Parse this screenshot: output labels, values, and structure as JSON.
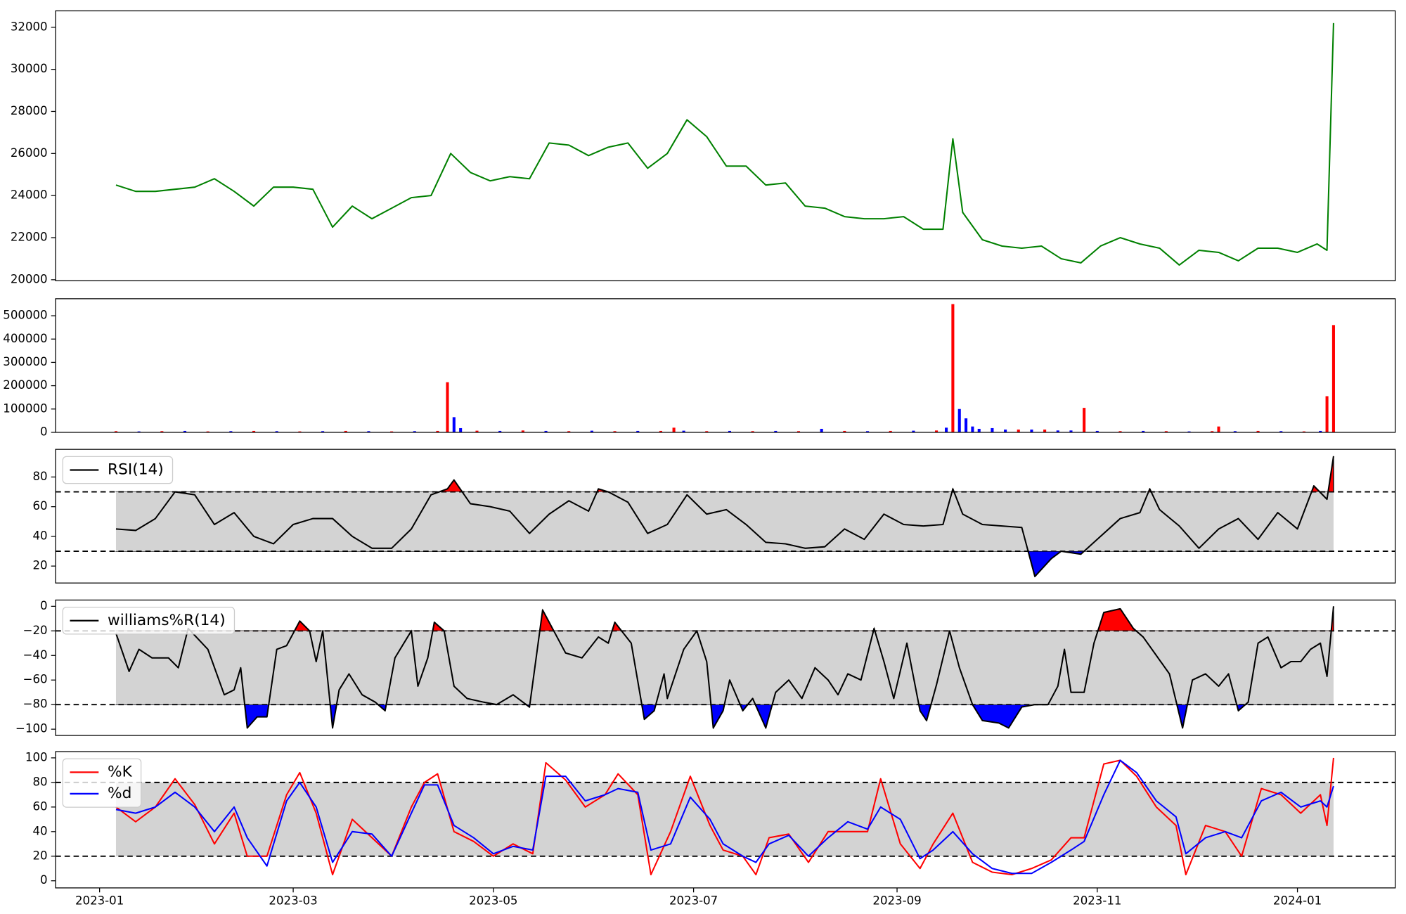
{
  "chart_data": [
    {
      "type": "line",
      "xlim": [
        -13.4,
        394.8
      ],
      "ylim": [
        19950,
        32780
      ],
      "yticks": [
        20000,
        22000,
        24000,
        26000,
        28000,
        30000,
        32000
      ],
      "x": [
        5,
        11,
        17,
        23,
        29,
        35,
        41,
        47,
        53,
        59,
        65,
        71,
        77,
        83,
        89,
        95,
        101,
        107,
        113,
        119,
        125,
        131,
        137,
        143,
        149,
        155,
        161,
        167,
        173,
        179,
        185,
        191,
        197,
        203,
        209,
        215,
        221,
        227,
        233,
        239,
        245,
        251,
        257,
        260,
        263,
        269,
        275,
        281,
        287,
        293,
        299,
        305,
        311,
        317,
        323,
        329,
        335,
        341,
        347,
        353,
        359,
        365,
        371,
        374,
        376
      ],
      "series": [
        {
          "color": "#008000",
          "values": [
            24500,
            24200,
            24200,
            24300,
            24400,
            24800,
            24200,
            23500,
            24400,
            24400,
            24300,
            22500,
            23500,
            22900,
            23400,
            23900,
            24000,
            26000,
            25100,
            24700,
            24900,
            24800,
            26500,
            26400,
            25900,
            26300,
            26500,
            25300,
            26000,
            27600,
            26800,
            25400,
            25400,
            24500,
            24600,
            23500,
            23400,
            23000,
            22900,
            22900,
            23000,
            22400,
            22400,
            26700,
            23200,
            21900,
            21600,
            21500,
            21600,
            21000,
            20800,
            21600,
            22000,
            21700,
            21500,
            20700,
            21400,
            21300,
            20900,
            21500,
            21500,
            21300,
            21700,
            21400,
            32200
          ]
        }
      ]
    },
    {
      "type": "bar",
      "xlim": [
        -13.4,
        394.8
      ],
      "ylim": [
        0,
        573000
      ],
      "yticks": [
        0,
        100000,
        200000,
        300000,
        400000,
        500000
      ],
      "x": [
        5,
        12,
        19,
        26,
        33,
        40,
        47,
        54,
        61,
        68,
        75,
        82,
        89,
        96,
        103,
        106,
        108,
        110,
        115,
        122,
        129,
        136,
        143,
        150,
        157,
        164,
        171,
        175,
        178,
        185,
        192,
        199,
        206,
        213,
        220,
        227,
        234,
        241,
        248,
        255,
        258,
        260,
        262,
        264,
        266,
        268,
        272,
        276,
        280,
        284,
        288,
        292,
        296,
        300,
        304,
        311,
        318,
        325,
        332,
        339,
        341,
        346,
        353,
        360,
        367,
        372,
        374,
        376
      ],
      "values": [
        5000,
        4000,
        5000,
        6000,
        4000,
        5000,
        6000,
        5000,
        4000,
        5000,
        6000,
        5000,
        4000,
        5000,
        6000,
        215000,
        65000,
        18000,
        7000,
        6000,
        8000,
        6000,
        5000,
        7000,
        5000,
        6000,
        6000,
        20000,
        7000,
        5000,
        6000,
        5000,
        6000,
        5000,
        15000,
        6000,
        5000,
        6000,
        7000,
        8000,
        20000,
        550000,
        100000,
        60000,
        25000,
        15000,
        18000,
        12000,
        12000,
        12000,
        12000,
        8000,
        8000,
        105000,
        6000,
        5000,
        6000,
        5000,
        4000,
        5000,
        25000,
        5000,
        6000,
        5000,
        4000,
        6000,
        155000,
        460000
      ],
      "colors": [
        "#ff0000",
        "#0000ff",
        "#ff0000",
        "#0000ff",
        "#ff0000",
        "#0000ff",
        "#ff0000",
        "#0000ff",
        "#ff0000",
        "#0000ff",
        "#ff0000",
        "#0000ff",
        "#ff0000",
        "#0000ff",
        "#ff0000",
        "#ff0000",
        "#0000ff",
        "#0000ff",
        "#ff0000",
        "#0000ff",
        "#ff0000",
        "#0000ff",
        "#ff0000",
        "#0000ff",
        "#ff0000",
        "#0000ff",
        "#ff0000",
        "#ff0000",
        "#0000ff",
        "#ff0000",
        "#0000ff",
        "#ff0000",
        "#0000ff",
        "#ff0000",
        "#0000ff",
        "#ff0000",
        "#0000ff",
        "#ff0000",
        "#0000ff",
        "#ff0000",
        "#0000ff",
        "#ff0000",
        "#0000ff",
        "#0000ff",
        "#0000ff",
        "#0000ff",
        "#0000ff",
        "#0000ff",
        "#ff0000",
        "#0000ff",
        "#ff0000",
        "#0000ff",
        "#0000ff",
        "#ff0000",
        "#0000ff",
        "#ff0000",
        "#0000ff",
        "#ff0000",
        "#0000ff",
        "#ff0000",
        "#ff0000",
        "#0000ff",
        "#ff0000",
        "#0000ff",
        "#ff0000",
        "#0000ff",
        "#ff0000",
        "#ff0000"
      ]
    },
    {
      "type": "line",
      "xlim": [
        -13.4,
        394.8
      ],
      "ylim": [
        8.6,
        98.6
      ],
      "yticks": [
        20,
        40,
        60,
        80
      ],
      "thresholds": [
        30,
        70
      ],
      "band_color": "#d3d3d3",
      "fill_colors": [
        "#0000ff",
        "#ff0000"
      ],
      "legend": "upper left",
      "x": [
        5,
        11,
        17,
        23,
        29,
        35,
        41,
        47,
        53,
        59,
        65,
        71,
        77,
        83,
        89,
        95,
        101,
        106,
        108,
        113,
        119,
        125,
        131,
        137,
        143,
        149,
        152,
        155,
        161,
        167,
        173,
        179,
        185,
        191,
        197,
        203,
        209,
        215,
        221,
        227,
        233,
        239,
        245,
        251,
        257,
        260,
        263,
        269,
        275,
        281,
        285,
        290,
        293,
        299,
        305,
        311,
        317,
        320,
        323,
        329,
        335,
        341,
        347,
        353,
        359,
        365,
        370,
        374,
        376
      ],
      "series": [
        {
          "name": "RSI(14)",
          "color": "#000000",
          "values": [
            45,
            44,
            52,
            70,
            68,
            48,
            56,
            40,
            35,
            48,
            52,
            52,
            40,
            32,
            32,
            45,
            68,
            72,
            78,
            62,
            60,
            57,
            42,
            55,
            64,
            57,
            72,
            70,
            63,
            42,
            48,
            68,
            55,
            58,
            48,
            36,
            35,
            32,
            33,
            45,
            38,
            55,
            48,
            47,
            48,
            72,
            55,
            48,
            47,
            46,
            13,
            25,
            30,
            28,
            40,
            52,
            56,
            72,
            58,
            47,
            32,
            45,
            52,
            38,
            56,
            45,
            74,
            65,
            94
          ]
        }
      ]
    },
    {
      "type": "line",
      "xlim": [
        -13.4,
        394.8
      ],
      "ylim": [
        -105.1,
        5.1
      ],
      "yticks": [
        {
          "value": -100,
          "label": "−100"
        },
        {
          "value": -80,
          "label": "−80"
        },
        {
          "value": -60,
          "label": "−60"
        },
        {
          "value": -40,
          "label": "−40"
        },
        {
          "value": -20,
          "label": "−20"
        },
        0
      ],
      "thresholds": [
        -80,
        -20
      ],
      "band_color": "#d3d3d3",
      "fill_colors": [
        "#0000ff",
        "#ff0000"
      ],
      "legend": "upper left",
      "x": [
        5,
        9,
        12,
        16,
        21,
        24,
        27,
        33,
        38,
        41,
        43,
        45,
        48,
        51,
        54,
        57,
        61,
        64,
        66,
        68,
        71,
        73,
        76,
        80,
        84,
        87,
        90,
        95,
        97,
        100,
        102,
        105,
        108,
        112,
        117,
        121,
        126,
        131,
        135,
        138,
        142,
        147,
        152,
        155,
        157,
        162,
        166,
        169,
        172,
        173,
        178,
        182,
        185,
        187,
        190,
        192,
        196,
        199,
        203,
        206,
        210,
        214,
        218,
        222,
        225,
        228,
        232,
        236,
        239,
        242,
        246,
        250,
        252,
        255,
        259,
        262,
        266,
        269,
        274,
        277,
        281,
        285,
        289,
        292,
        294,
        296,
        300,
        303,
        306,
        311,
        315,
        318,
        322,
        326,
        330,
        333,
        337,
        341,
        344,
        347,
        350,
        353,
        356,
        360,
        363,
        366,
        369,
        372,
        374,
        376
      ],
      "series": [
        {
          "name": "williams%R(14)",
          "color": "#000000",
          "values": [
            -22,
            -53,
            -35,
            -42,
            -42,
            -50,
            -18,
            -35,
            -72,
            -68,
            -50,
            -99,
            -90,
            -90,
            -35,
            -32,
            -12,
            -20,
            -45,
            -20,
            -99,
            -68,
            -55,
            -72,
            -78,
            -85,
            -42,
            -20,
            -65,
            -42,
            -13,
            -20,
            -65,
            -75,
            -78,
            -80,
            -72,
            -82,
            -3,
            -18,
            -38,
            -42,
            -25,
            -30,
            -13,
            -30,
            -92,
            -85,
            -55,
            -75,
            -35,
            -20,
            -45,
            -99,
            -85,
            -60,
            -85,
            -75,
            -99,
            -70,
            -60,
            -75,
            -50,
            -60,
            -72,
            -55,
            -60,
            -18,
            -45,
            -75,
            -30,
            -85,
            -93,
            -64,
            -20,
            -50,
            -80,
            -93,
            -95,
            -99,
            -82,
            -80,
            -80,
            -65,
            -35,
            -70,
            -70,
            -30,
            -5,
            -2,
            -18,
            -25,
            -40,
            -55,
            -99,
            -60,
            -55,
            -65,
            -55,
            -85,
            -78,
            -30,
            -25,
            -50,
            -45,
            -45,
            -35,
            -30,
            -57,
            0
          ]
        }
      ]
    },
    {
      "type": "line",
      "xlim": [
        -13.4,
        394.8
      ],
      "ylim": [
        -5.8,
        105.1
      ],
      "yticks": [
        0,
        20,
        40,
        60,
        80,
        100
      ],
      "thresholds": [
        20,
        80
      ],
      "band_color": "#d3d3d3",
      "legend": "upper left",
      "xticks": [
        {
          "value": 0,
          "label": "2023-01"
        },
        {
          "value": 59,
          "label": "2023-03"
        },
        {
          "value": 120,
          "label": "2023-05"
        },
        {
          "value": 181,
          "label": "2023-07"
        },
        {
          "value": 243,
          "label": "2023-09"
        },
        {
          "value": 304,
          "label": "2023-11"
        },
        {
          "value": 365,
          "label": "2024-01"
        }
      ],
      "x": [
        5,
        11,
        17,
        23,
        29,
        35,
        41,
        45,
        51,
        57,
        61,
        66,
        71,
        77,
        83,
        89,
        95,
        99,
        103,
        108,
        114,
        120,
        126,
        132,
        136,
        142,
        148,
        154,
        158,
        164,
        168,
        174,
        180,
        186,
        190,
        196,
        200,
        204,
        210,
        216,
        222,
        228,
        234,
        238,
        244,
        250,
        254,
        260,
        266,
        272,
        278,
        284,
        290,
        296,
        300,
        306,
        311,
        316,
        322,
        328,
        331,
        337,
        343,
        348,
        354,
        360,
        366,
        372,
        374,
        376
      ],
      "series": [
        {
          "name": "%K",
          "color": "#ff0000",
          "values": [
            60,
            48,
            60,
            83,
            62,
            30,
            55,
            20,
            20,
            70,
            88,
            55,
            5,
            50,
            35,
            20,
            60,
            80,
            87,
            40,
            32,
            20,
            30,
            22,
            96,
            82,
            60,
            70,
            87,
            70,
            5,
            40,
            85,
            45,
            25,
            20,
            5,
            35,
            38,
            15,
            40,
            40,
            40,
            83,
            30,
            10,
            30,
            55,
            15,
            7,
            5,
            10,
            17,
            35,
            35,
            95,
            98,
            85,
            60,
            45,
            5,
            45,
            40,
            20,
            75,
            70,
            55,
            70,
            45,
            100
          ]
        },
        {
          "name": "%d",
          "color": "#0000ff",
          "values": [
            58,
            55,
            60,
            72,
            60,
            40,
            60,
            35,
            12,
            65,
            80,
            60,
            15,
            40,
            38,
            20,
            55,
            78,
            78,
            45,
            35,
            22,
            28,
            25,
            85,
            85,
            65,
            70,
            75,
            72,
            25,
            30,
            68,
            50,
            30,
            20,
            15,
            30,
            37,
            20,
            35,
            48,
            42,
            60,
            50,
            18,
            25,
            40,
            22,
            10,
            6,
            6,
            15,
            25,
            32,
            70,
            98,
            88,
            65,
            52,
            22,
            35,
            40,
            35,
            65,
            72,
            60,
            65,
            60,
            77
          ]
        }
      ]
    }
  ]
}
